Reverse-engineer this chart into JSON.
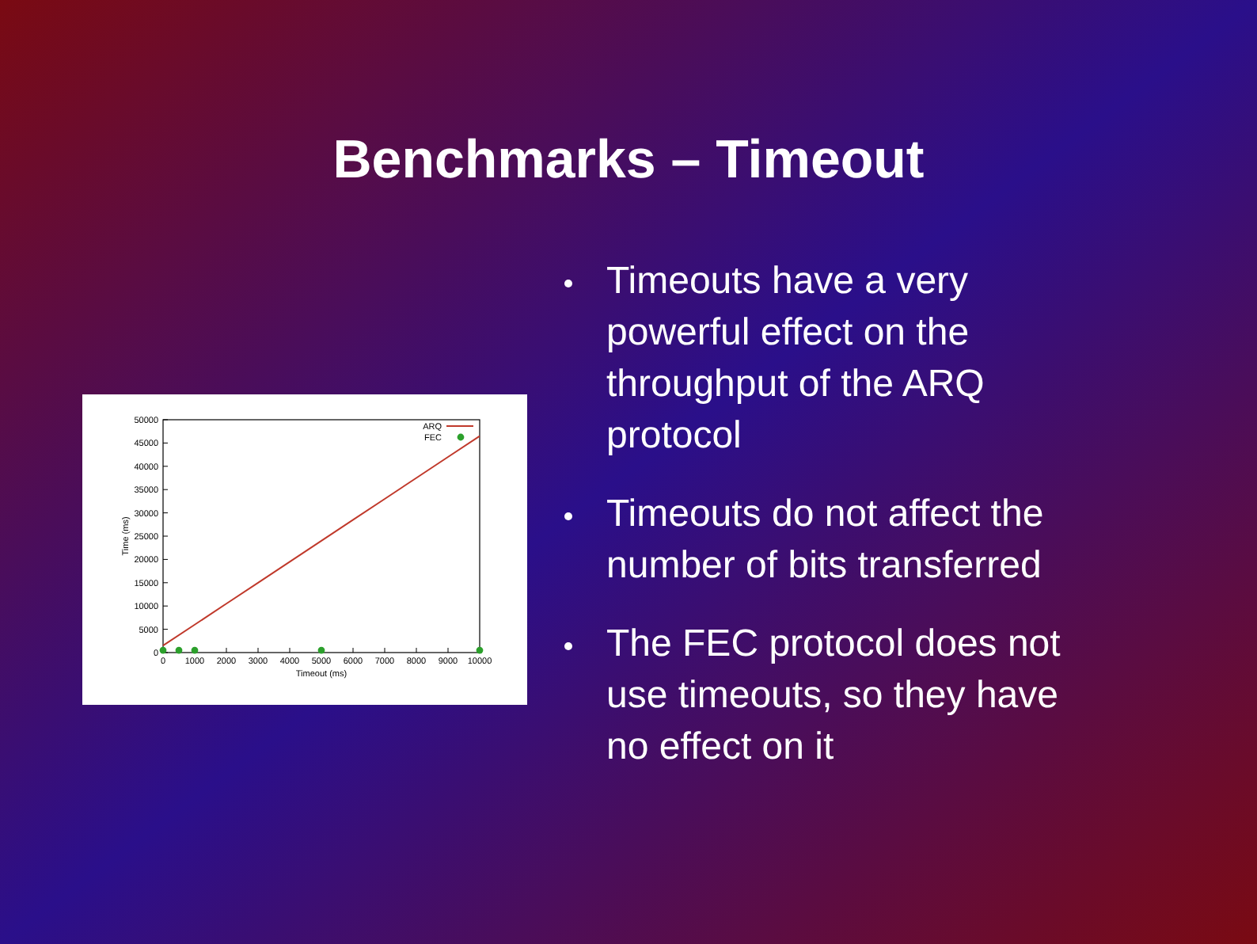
{
  "chart_data": {
    "type": "line",
    "title": "Benchmarks – Timeout",
    "xlabel": "Timeout (ms)",
    "ylabel": "Time (ms)",
    "x": [
      0,
      1000,
      2000,
      3000,
      4000,
      5000,
      6000,
      7000,
      8000,
      9000,
      10000
    ],
    "series": [
      {
        "name": "ARQ",
        "color": "#c0392b",
        "values": [
          1500,
          6000,
          10500,
          15000,
          19500,
          24000,
          28500,
          33000,
          37500,
          42000,
          46500
        ]
      },
      {
        "name": "FEC",
        "type": "scatter",
        "marker": "circle",
        "color": "#2ca02c",
        "x": [
          0,
          500,
          1000,
          5000,
          10000
        ],
        "values": [
          500,
          500,
          500,
          500,
          500
        ]
      }
    ],
    "xlim": [
      0,
      10000
    ],
    "xticks": [
      0,
      1000,
      2000,
      3000,
      4000,
      5000,
      6000,
      7000,
      8000,
      9000,
      10000
    ],
    "ylim": [
      0,
      50000
    ],
    "yticks": [
      0,
      5000,
      10000,
      15000,
      20000,
      25000,
      30000,
      35000,
      40000,
      45000,
      50000
    ],
    "legend": "top right",
    "line_style": "solid",
    "annotations": [
      "Timeouts have a very powerful effect on the throughput of the ARQ protocol",
      "Timeouts do not affect the number of bits transferred",
      "The FEC protocol does not use timeouts, so they have no effect on it"
    ]
  }
}
